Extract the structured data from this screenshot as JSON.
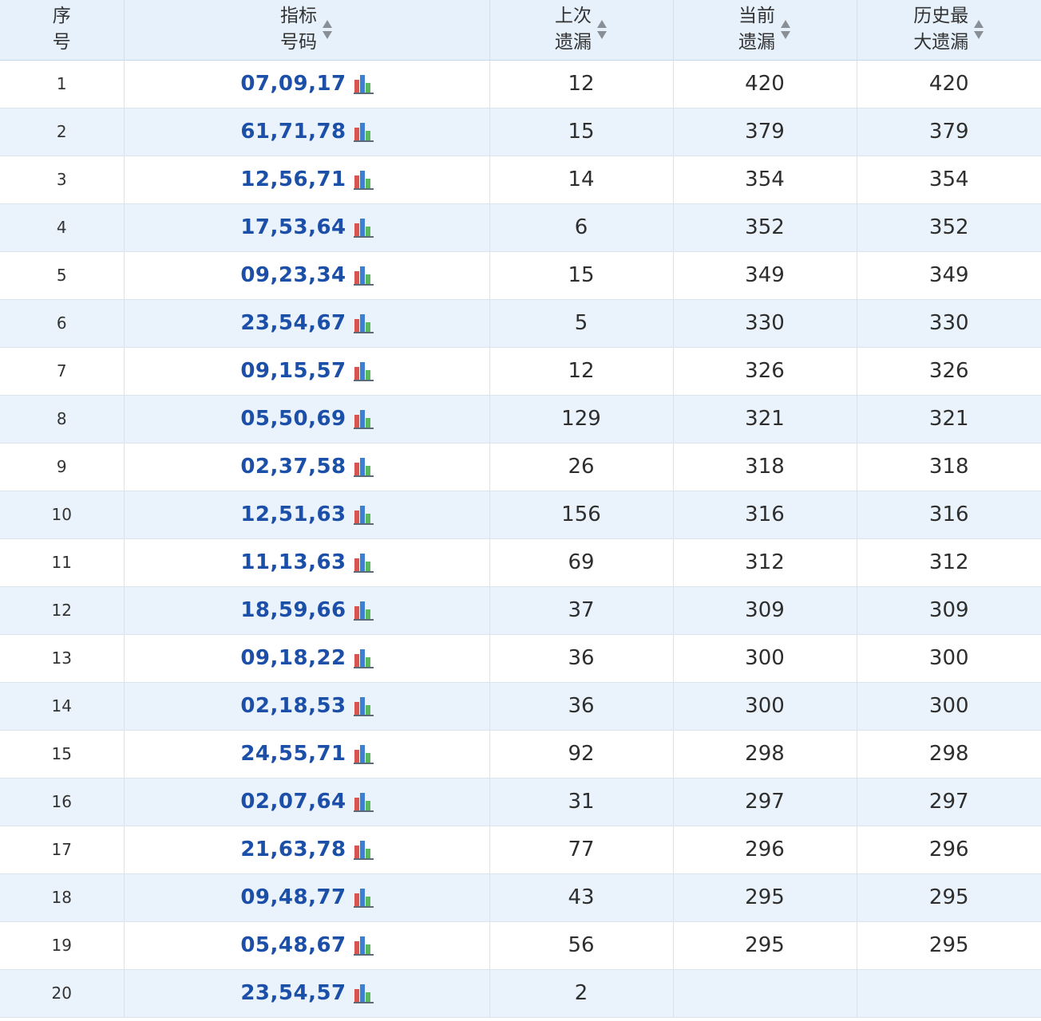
{
  "table": {
    "headers": [
      {
        "lines": [
          "序",
          "号"
        ],
        "sortable": false
      },
      {
        "lines": [
          "指标",
          "号码"
        ],
        "sortable": true
      },
      {
        "lines": [
          "上次",
          "遗漏"
        ],
        "sortable": true
      },
      {
        "lines": [
          "当前",
          "遗漏"
        ],
        "sortable": true
      },
      {
        "lines": [
          "历史最",
          "大遗漏"
        ],
        "sortable": true
      }
    ],
    "rows": [
      {
        "index": "1",
        "code": "07,09,17",
        "last_miss": "12",
        "current_miss": "420",
        "max_miss": "420"
      },
      {
        "index": "2",
        "code": "61,71,78",
        "last_miss": "15",
        "current_miss": "379",
        "max_miss": "379"
      },
      {
        "index": "3",
        "code": "12,56,71",
        "last_miss": "14",
        "current_miss": "354",
        "max_miss": "354"
      },
      {
        "index": "4",
        "code": "17,53,64",
        "last_miss": "6",
        "current_miss": "352",
        "max_miss": "352"
      },
      {
        "index": "5",
        "code": "09,23,34",
        "last_miss": "15",
        "current_miss": "349",
        "max_miss": "349"
      },
      {
        "index": "6",
        "code": "23,54,67",
        "last_miss": "5",
        "current_miss": "330",
        "max_miss": "330"
      },
      {
        "index": "7",
        "code": "09,15,57",
        "last_miss": "12",
        "current_miss": "326",
        "max_miss": "326"
      },
      {
        "index": "8",
        "code": "05,50,69",
        "last_miss": "129",
        "current_miss": "321",
        "max_miss": "321"
      },
      {
        "index": "9",
        "code": "02,37,58",
        "last_miss": "26",
        "current_miss": "318",
        "max_miss": "318"
      },
      {
        "index": "10",
        "code": "12,51,63",
        "last_miss": "156",
        "current_miss": "316",
        "max_miss": "316"
      },
      {
        "index": "11",
        "code": "11,13,63",
        "last_miss": "69",
        "current_miss": "312",
        "max_miss": "312"
      },
      {
        "index": "12",
        "code": "18,59,66",
        "last_miss": "37",
        "current_miss": "309",
        "max_miss": "309"
      },
      {
        "index": "13",
        "code": "09,18,22",
        "last_miss": "36",
        "current_miss": "300",
        "max_miss": "300"
      },
      {
        "index": "14",
        "code": "02,18,53",
        "last_miss": "36",
        "current_miss": "300",
        "max_miss": "300"
      },
      {
        "index": "15",
        "code": "24,55,71",
        "last_miss": "92",
        "current_miss": "298",
        "max_miss": "298"
      },
      {
        "index": "16",
        "code": "02,07,64",
        "last_miss": "31",
        "current_miss": "297",
        "max_miss": "297"
      },
      {
        "index": "17",
        "code": "21,63,78",
        "last_miss": "77",
        "current_miss": "296",
        "max_miss": "296"
      },
      {
        "index": "18",
        "code": "09,48,77",
        "last_miss": "43",
        "current_miss": "295",
        "max_miss": "295"
      },
      {
        "index": "19",
        "code": "05,48,67",
        "last_miss": "56",
        "current_miss": "295",
        "max_miss": "295"
      },
      {
        "index": "20",
        "code": "23,54,57",
        "last_miss": "2",
        "current_miss": "",
        "max_miss": ""
      }
    ]
  },
  "icons": {
    "sort": "sort-arrows-icon",
    "chart": "bar-chart-icon"
  },
  "colors": {
    "header_bg": "#e6f1fb",
    "row_alt_bg": "#eaf3fc",
    "link": "#1b4fa8"
  }
}
